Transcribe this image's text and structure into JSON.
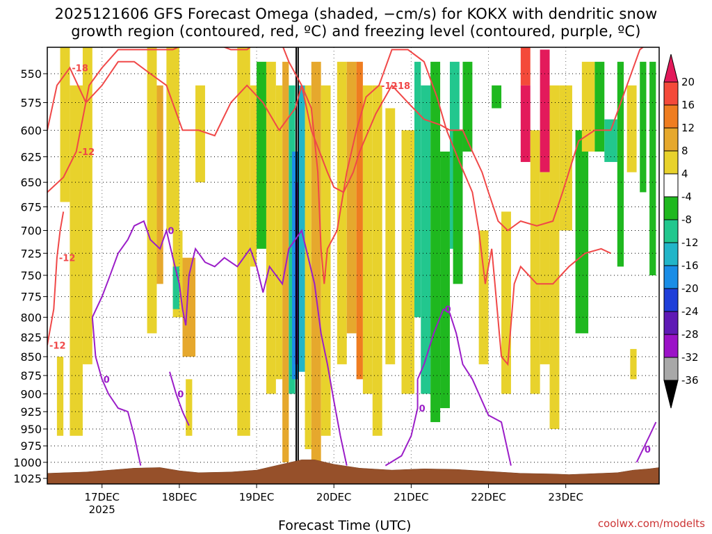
{
  "chart_data": {
    "type": "heatmap",
    "title_line1": "2025121606 GFS Forecast Omega (shaded, −cm/s) for KOKX with dendritic snow",
    "title_line2": "growth region (contoured, red, ºC) and freezing level (contoured, purple, ºC)",
    "xlabel": "Forecast Time (UTC)",
    "credit": "coolwx.com/modelts",
    "x_range_hours": [
      -17,
      173
    ],
    "x_ticks": [
      {
        "hour": 0,
        "label": "17DEC",
        "sublabel": "2025"
      },
      {
        "hour": 24,
        "label": "18DEC"
      },
      {
        "hour": 48,
        "label": "19DEC"
      },
      {
        "hour": 72,
        "label": "20DEC"
      },
      {
        "hour": 96,
        "label": "21DEC"
      },
      {
        "hour": 120,
        "label": "22DEC"
      },
      {
        "hour": 144,
        "label": "23DEC"
      }
    ],
    "y_ticks_hpa": [
      550,
      575,
      600,
      625,
      650,
      675,
      700,
      725,
      750,
      775,
      800,
      825,
      850,
      875,
      900,
      925,
      950,
      975,
      1000,
      1025
    ],
    "colorbar": {
      "tick_labels": [
        "20",
        "16",
        "12",
        "8",
        "4",
        "-4",
        "-8",
        "-12",
        "-16",
        "-20",
        "-24",
        "-28",
        "-32",
        "-36"
      ],
      "colors": [
        "#e31a5b",
        "#f44a3a",
        "#ef7d20",
        "#e6a82d",
        "#e8d22c",
        "#ffffff",
        "#1fb81f",
        "#22c78e",
        "#22b5c8",
        "#1a8de6",
        "#1f3fd9",
        "#5f1ab5",
        "#9b12c7",
        "#a8a8a8",
        "#000000"
      ]
    },
    "shading": [
      {
        "t0": -13,
        "t1": -10,
        "p0": 520,
        "p1": 670,
        "v": 6
      },
      {
        "t0": -10,
        "t1": -6,
        "p0": 560,
        "p1": 960,
        "v": 5
      },
      {
        "t0": -6,
        "t1": -3,
        "p0": 520,
        "p1": 860,
        "v": 6
      },
      {
        "t0": -14,
        "t1": -12,
        "p0": 850,
        "p1": 960,
        "v": 5
      },
      {
        "t0": 14,
        "t1": 17,
        "p0": 520,
        "p1": 820,
        "v": 6
      },
      {
        "t0": 17,
        "t1": 19,
        "p0": 560,
        "p1": 760,
        "v": 10
      },
      {
        "t0": 20,
        "t1": 24,
        "p0": 520,
        "p1": 700,
        "v": 5
      },
      {
        "t0": 22,
        "t1": 25,
        "p0": 700,
        "p1": 800,
        "v": 6
      },
      {
        "t0": 22,
        "t1": 24,
        "p0": 740,
        "p1": 790,
        "v": -10
      },
      {
        "t0": 25,
        "t1": 29,
        "p0": 730,
        "p1": 850,
        "v": 10
      },
      {
        "t0": 26,
        "t1": 28,
        "p0": 880,
        "p1": 960,
        "v": 5
      },
      {
        "t0": 29,
        "t1": 32,
        "p0": 560,
        "p1": 650,
        "v": 5
      },
      {
        "t0": 42,
        "t1": 46,
        "p0": 520,
        "p1": 960,
        "v": 5
      },
      {
        "t0": 46,
        "t1": 48,
        "p0": 560,
        "p1": 740,
        "v": 6
      },
      {
        "t0": 48,
        "t1": 51,
        "p0": 540,
        "p1": 720,
        "v": -6
      },
      {
        "t0": 51,
        "t1": 54,
        "p0": 540,
        "p1": 900,
        "v": 5
      },
      {
        "t0": 54,
        "t1": 56,
        "p0": 560,
        "p1": 880,
        "v": 6
      },
      {
        "t0": 56,
        "t1": 58,
        "p0": 540,
        "p1": 1000,
        "v": 10
      },
      {
        "t0": 58,
        "t1": 60,
        "p0": 560,
        "p1": 900,
        "v": -10
      },
      {
        "t0": 59,
        "t1": 61,
        "p0": 620,
        "p1": 880,
        "v": -18
      },
      {
        "t0": 60,
        "t1": 61,
        "p0": 650,
        "p1": 860,
        "v": -26
      },
      {
        "t0": 61,
        "t1": 63,
        "p0": 560,
        "p1": 870,
        "v": -14
      },
      {
        "t0": 63,
        "t1": 65,
        "p0": 560,
        "p1": 980,
        "v": 6
      },
      {
        "t0": 65,
        "t1": 68,
        "p0": 540,
        "p1": 1000,
        "v": 10
      },
      {
        "t0": 68,
        "t1": 71,
        "p0": 560,
        "p1": 960,
        "v": 5
      },
      {
        "t0": 73,
        "t1": 76,
        "p0": 540,
        "p1": 860,
        "v": 6
      },
      {
        "t0": 76,
        "t1": 79,
        "p0": 540,
        "p1": 820,
        "v": 10
      },
      {
        "t0": 79,
        "t1": 81,
        "p0": 540,
        "p1": 880,
        "v": 14
      },
      {
        "t0": 81,
        "t1": 84,
        "p0": 560,
        "p1": 900,
        "v": 6
      },
      {
        "t0": 84,
        "t1": 87,
        "p0": 560,
        "p1": 960,
        "v": 5
      },
      {
        "t0": 88,
        "t1": 91,
        "p0": 580,
        "p1": 860,
        "v": 5
      },
      {
        "t0": 93,
        "t1": 97,
        "p0": 600,
        "p1": 900,
        "v": 5
      },
      {
        "t0": 97,
        "t1": 99,
        "p0": 540,
        "p1": 800,
        "v": -10
      },
      {
        "t0": 99,
        "t1": 102,
        "p0": 560,
        "p1": 900,
        "v": -8
      },
      {
        "t0": 102,
        "t1": 105,
        "p0": 540,
        "p1": 940,
        "v": -6
      },
      {
        "t0": 105,
        "t1": 108,
        "p0": 620,
        "p1": 920,
        "v": -6
      },
      {
        "t0": 108,
        "t1": 111,
        "p0": 540,
        "p1": 720,
        "v": -10
      },
      {
        "t0": 109,
        "t1": 112,
        "p0": 600,
        "p1": 760,
        "v": -6
      },
      {
        "t0": 112,
        "t1": 115,
        "p0": 540,
        "p1": 620,
        "v": -6
      },
      {
        "t0": 117,
        "t1": 120,
        "p0": 700,
        "p1": 860,
        "v": 5
      },
      {
        "t0": 121,
        "t1": 124,
        "p0": 560,
        "p1": 580,
        "v": -6
      },
      {
        "t0": 124,
        "t1": 127,
        "p0": 680,
        "p1": 900,
        "v": 5
      },
      {
        "t0": 130,
        "t1": 133,
        "p0": 520,
        "p1": 560,
        "v": 16
      },
      {
        "t0": 130,
        "t1": 133,
        "p0": 560,
        "p1": 630,
        "v": 20
      },
      {
        "t0": 133,
        "t1": 136,
        "p0": 600,
        "p1": 900,
        "v": 5
      },
      {
        "t0": 136,
        "t1": 139,
        "p0": 530,
        "p1": 640,
        "v": 20
      },
      {
        "t0": 136,
        "t1": 139,
        "p0": 640,
        "p1": 860,
        "v": 6
      },
      {
        "t0": 139,
        "t1": 142,
        "p0": 560,
        "p1": 950,
        "v": 5
      },
      {
        "t0": 142,
        "t1": 146,
        "p0": 560,
        "p1": 700,
        "v": 5
      },
      {
        "t0": 147,
        "t1": 151,
        "p0": 600,
        "p1": 820,
        "v": -6
      },
      {
        "t0": 149,
        "t1": 153,
        "p0": 540,
        "p1": 620,
        "v": 5
      },
      {
        "t0": 153,
        "t1": 156,
        "p0": 540,
        "p1": 620,
        "v": -6
      },
      {
        "t0": 156,
        "t1": 160,
        "p0": 590,
        "p1": 630,
        "v": -10
      },
      {
        "t0": 160,
        "t1": 162,
        "p0": 540,
        "p1": 740,
        "v": -6
      },
      {
        "t0": 163,
        "t1": 166,
        "p0": 560,
        "p1": 640,
        "v": 5
      },
      {
        "t0": 164,
        "t1": 166,
        "p0": 840,
        "p1": 880,
        "v": 5
      },
      {
        "t0": 167,
        "t1": 169,
        "p0": 540,
        "p1": 660,
        "v": -6
      },
      {
        "t0": 170,
        "t1": 172,
        "p0": 540,
        "p1": 750,
        "v": -6
      }
    ],
    "black_line_hours": [
      60.3,
      60.9
    ],
    "red_contours": [
      {
        "label": "-18",
        "points": [
          [
            -17,
            600
          ],
          [
            -14,
            560
          ],
          [
            -10,
            545
          ],
          [
            -5,
            575
          ],
          [
            0,
            560
          ],
          [
            5,
            540
          ],
          [
            10,
            540
          ],
          [
            15,
            550
          ],
          [
            20,
            560
          ],
          [
            25,
            600
          ],
          [
            30,
            600
          ],
          [
            35,
            605
          ],
          [
            40,
            575
          ],
          [
            45,
            560
          ],
          [
            50,
            575
          ],
          [
            55,
            600
          ],
          [
            60,
            580
          ],
          [
            62,
            560
          ],
          [
            65,
            600
          ],
          [
            70,
            640
          ],
          [
            72,
            655
          ],
          [
            75,
            660
          ],
          [
            78,
            640
          ],
          [
            80,
            620
          ],
          [
            85,
            585
          ],
          [
            90,
            560
          ],
          [
            95,
            575
          ],
          [
            100,
            590
          ],
          [
            105,
            595
          ],
          [
            108,
            600
          ],
          [
            112,
            600
          ],
          [
            115,
            620
          ],
          [
            118,
            640
          ],
          [
            120,
            660
          ],
          [
            123,
            690
          ],
          [
            126,
            700
          ],
          [
            130,
            690
          ],
          [
            135,
            695
          ],
          [
            140,
            690
          ],
          [
            143,
            660
          ],
          [
            148,
            610
          ],
          [
            153,
            600
          ],
          [
            158,
            600
          ],
          [
            163,
            560
          ],
          [
            167,
            530
          ],
          [
            172,
            520
          ]
        ]
      },
      {
        "label": "-12",
        "points": [
          [
            -17,
            660
          ],
          [
            -12,
            645
          ],
          [
            -8,
            620
          ],
          [
            -4,
            560
          ],
          [
            0,
            545
          ],
          [
            5,
            530
          ],
          [
            10,
            530
          ],
          [
            15,
            530
          ],
          [
            22,
            530
          ],
          [
            30,
            520
          ],
          [
            40,
            530
          ],
          [
            45,
            530
          ],
          [
            50,
            520
          ],
          [
            55,
            520
          ],
          [
            58,
            540
          ],
          [
            62,
            560
          ],
          [
            65,
            580
          ],
          [
            67,
            640
          ],
          [
            68,
            720
          ],
          [
            69,
            760
          ],
          [
            70,
            720
          ],
          [
            73,
            700
          ],
          [
            76,
            640
          ],
          [
            79,
            600
          ],
          [
            82,
            570
          ],
          [
            86,
            560
          ],
          [
            90,
            530
          ],
          [
            95,
            530
          ],
          [
            100,
            540
          ],
          [
            104,
            570
          ],
          [
            107,
            600
          ],
          [
            111,
            630
          ],
          [
            115,
            660
          ],
          [
            117,
            700
          ],
          [
            119,
            760
          ],
          [
            121,
            720
          ],
          [
            122,
            760
          ],
          [
            124,
            850
          ],
          [
            126,
            860
          ],
          [
            128,
            760
          ],
          [
            130,
            740
          ],
          [
            135,
            760
          ],
          [
            140,
            760
          ],
          [
            145,
            740
          ],
          [
            150,
            725
          ],
          [
            155,
            720
          ],
          [
            158,
            725
          ]
        ]
      },
      {
        "label": "-12",
        "points": [
          [
            -17,
            835
          ],
          [
            -15,
            790
          ],
          [
            -14,
            730
          ],
          [
            -13,
            700
          ],
          [
            -12,
            680
          ]
        ]
      }
    ],
    "purple_contours": [
      {
        "label": "0",
        "points": [
          [
            -3,
            800
          ],
          [
            0,
            775
          ],
          [
            2,
            755
          ],
          [
            5,
            725
          ],
          [
            8,
            710
          ],
          [
            10,
            695
          ],
          [
            13,
            690
          ],
          [
            15,
            710
          ],
          [
            18,
            720
          ],
          [
            20,
            700
          ],
          [
            22,
            730
          ],
          [
            24,
            760
          ],
          [
            25,
            790
          ],
          [
            26,
            810
          ],
          [
            27,
            750
          ],
          [
            29,
            720
          ],
          [
            32,
            735
          ],
          [
            35,
            740
          ],
          [
            38,
            730
          ],
          [
            42,
            740
          ],
          [
            46,
            720
          ],
          [
            48,
            740
          ],
          [
            50,
            770
          ],
          [
            52,
            740
          ],
          [
            56,
            760
          ],
          [
            58,
            720
          ],
          [
            62,
            700
          ],
          [
            66,
            760
          ],
          [
            68,
            820
          ],
          [
            70,
            860
          ],
          [
            72,
            910
          ],
          [
            74,
            960
          ],
          [
            76,
            1005
          ]
        ]
      },
      {
        "label": "0",
        "points": [
          [
            -3,
            800
          ],
          [
            -2,
            850
          ],
          [
            0,
            880
          ],
          [
            2,
            900
          ],
          [
            5,
            920
          ],
          [
            8,
            925
          ],
          [
            10,
            960
          ],
          [
            12,
            1005
          ]
        ]
      },
      {
        "label": "0",
        "points": [
          [
            21,
            870
          ],
          [
            23,
            900
          ],
          [
            25,
            925
          ],
          [
            27,
            945
          ]
        ]
      },
      {
        "label": "0",
        "points": [
          [
            98,
            880
          ],
          [
            100,
            860
          ],
          [
            103,
            820
          ],
          [
            106,
            790
          ],
          [
            108,
            795
          ],
          [
            110,
            820
          ],
          [
            112,
            860
          ],
          [
            115,
            880
          ],
          [
            118,
            910
          ],
          [
            120,
            930
          ],
          [
            124,
            940
          ],
          [
            127,
            1005
          ]
        ]
      },
      {
        "label": "0",
        "points": [
          [
            98,
            880
          ],
          [
            98,
            920
          ],
          [
            96,
            960
          ],
          [
            93,
            990
          ],
          [
            88,
            1005
          ]
        ]
      },
      {
        "label": "0",
        "points": [
          [
            166,
            1000
          ],
          [
            168,
            980
          ],
          [
            170,
            960
          ],
          [
            172,
            940
          ]
        ]
      }
    ],
    "terrain": [
      [
        -17,
        1017
      ],
      [
        -5,
        1015
      ],
      [
        0,
        1013
      ],
      [
        10,
        1009
      ],
      [
        18,
        1008
      ],
      [
        24,
        1013
      ],
      [
        30,
        1016
      ],
      [
        40,
        1015
      ],
      [
        48,
        1012
      ],
      [
        55,
        1004
      ],
      [
        62,
        996
      ],
      [
        66,
        996
      ],
      [
        72,
        1003
      ],
      [
        80,
        1009
      ],
      [
        90,
        1012
      ],
      [
        100,
        1010
      ],
      [
        110,
        1011
      ],
      [
        120,
        1014
      ],
      [
        130,
        1017
      ],
      [
        140,
        1018
      ],
      [
        145,
        1019
      ],
      [
        150,
        1018
      ],
      [
        160,
        1016
      ],
      [
        165,
        1012
      ],
      [
        170,
        1010
      ],
      [
        173,
        1008
      ]
    ]
  }
}
